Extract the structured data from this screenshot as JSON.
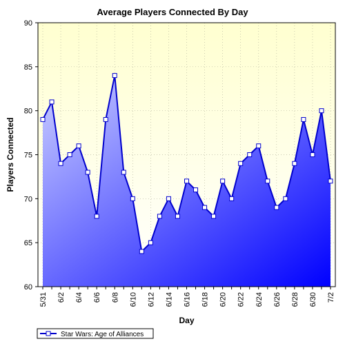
{
  "chart_data": {
    "type": "area",
    "title": "Average Players Connected By Day",
    "xlabel": "Day",
    "ylabel": "Players Connected",
    "ylim": [
      60,
      90
    ],
    "yticks": [
      60,
      65,
      70,
      75,
      80,
      85,
      90
    ],
    "grid": true,
    "legend_position": "bottom-left",
    "colors": {
      "line": "#0000cc",
      "fill_light": "#ccd0ff",
      "fill_dark": "#0000ff",
      "plot_bg_top": "#ffffd0",
      "plot_bg_bottom": "#ffffff",
      "marker_fill": "#ffffff"
    },
    "x_tick_labels": [
      "5/31",
      "6/2",
      "6/4",
      "6/6",
      "6/8",
      "6/10",
      "6/12",
      "6/14",
      "6/16",
      "6/18",
      "6/20",
      "6/22",
      "6/24",
      "6/26",
      "6/28",
      "6/30",
      "7/2"
    ],
    "x": [
      "5/31",
      "6/1",
      "6/2",
      "6/3",
      "6/4",
      "6/5",
      "6/6",
      "6/7",
      "6/8",
      "6/9",
      "6/10",
      "6/11",
      "6/12",
      "6/13",
      "6/14",
      "6/15",
      "6/16",
      "6/17",
      "6/18",
      "6/19",
      "6/20",
      "6/21",
      "6/22",
      "6/23",
      "6/24",
      "6/25",
      "6/26",
      "6/27",
      "6/28",
      "6/29",
      "6/30",
      "7/1",
      "7/2"
    ],
    "series": [
      {
        "name": "Star Wars: Age of Alliances",
        "values": [
          79,
          81,
          74,
          75,
          76,
          73,
          68,
          79,
          84,
          73,
          70,
          64,
          65,
          68,
          70,
          68,
          72,
          71,
          69,
          68,
          72,
          70,
          74,
          75,
          76,
          72,
          69,
          70,
          74,
          79,
          75,
          80,
          72
        ]
      }
    ]
  }
}
